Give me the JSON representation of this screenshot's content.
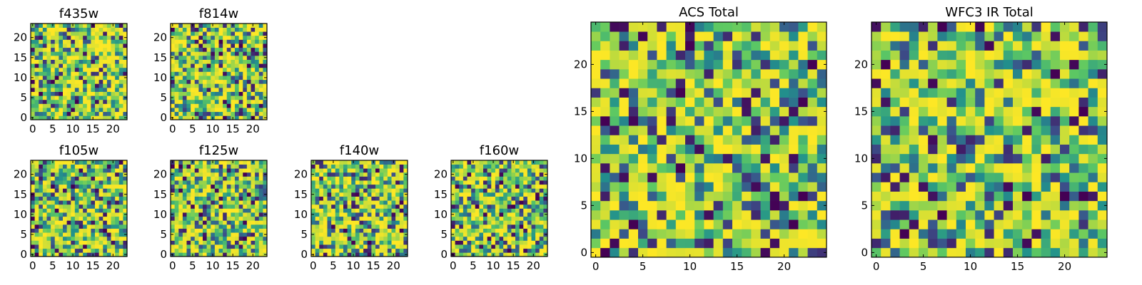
{
  "figure_title": "",
  "chart_data": [
    {
      "id": "f435w",
      "type": "heatmap",
      "title": "f435w",
      "grid": [
        24,
        24
      ],
      "xlim": [
        -0.5,
        23.5
      ],
      "ylim": [
        -0.5,
        23.5
      ],
      "xticks": [
        0,
        5,
        10,
        15,
        20
      ],
      "yticks": [
        0,
        5,
        10,
        15,
        20
      ],
      "colormap": "viridis",
      "seed": 11
    },
    {
      "id": "f814w",
      "type": "heatmap",
      "title": "f814w",
      "grid": [
        24,
        24
      ],
      "xlim": [
        -0.5,
        23.5
      ],
      "ylim": [
        -0.5,
        23.5
      ],
      "xticks": [
        0,
        5,
        10,
        15,
        20
      ],
      "yticks": [
        0,
        5,
        10,
        15,
        20
      ],
      "colormap": "viridis",
      "seed": 23
    },
    {
      "id": "f105w",
      "type": "heatmap",
      "title": "f105w",
      "grid": [
        24,
        24
      ],
      "xlim": [
        -0.5,
        23.5
      ],
      "ylim": [
        -0.5,
        23.5
      ],
      "xticks": [
        0,
        5,
        10,
        15,
        20
      ],
      "yticks": [
        0,
        5,
        10,
        15,
        20
      ],
      "colormap": "viridis",
      "seed": 37
    },
    {
      "id": "f125w",
      "type": "heatmap",
      "title": "f125w",
      "grid": [
        24,
        24
      ],
      "xlim": [
        -0.5,
        23.5
      ],
      "ylim": [
        -0.5,
        23.5
      ],
      "xticks": [
        0,
        5,
        10,
        15,
        20
      ],
      "yticks": [
        0,
        5,
        10,
        15,
        20
      ],
      "colormap": "viridis",
      "seed": 41
    },
    {
      "id": "f140w",
      "type": "heatmap",
      "title": "f140w",
      "grid": [
        24,
        24
      ],
      "xlim": [
        -0.5,
        23.5
      ],
      "ylim": [
        -0.5,
        23.5
      ],
      "xticks": [
        0,
        5,
        10,
        15,
        20
      ],
      "yticks": [
        0,
        5,
        10,
        15,
        20
      ],
      "colormap": "viridis",
      "seed": 53
    },
    {
      "id": "f160w",
      "type": "heatmap",
      "title": "f160w",
      "grid": [
        24,
        24
      ],
      "xlim": [
        -0.5,
        23.5
      ],
      "ylim": [
        -0.5,
        23.5
      ],
      "xticks": [
        0,
        5,
        10,
        15,
        20
      ],
      "yticks": [
        0,
        5,
        10,
        15,
        20
      ],
      "colormap": "viridis",
      "seed": 67
    },
    {
      "id": "acs_total",
      "type": "heatmap",
      "title": "ACS Total",
      "grid": [
        25,
        25
      ],
      "xlim": [
        -0.5,
        24.5
      ],
      "ylim": [
        -0.5,
        24.5
      ],
      "xticks": [
        0,
        5,
        10,
        15,
        20
      ],
      "yticks": [
        0,
        5,
        10,
        15,
        20
      ],
      "colormap": "viridis",
      "seed": 79
    },
    {
      "id": "wfc3_ir_total",
      "type": "heatmap",
      "title": "WFC3 IR Total",
      "grid": [
        25,
        25
      ],
      "xlim": [
        -0.5,
        24.5
      ],
      "ylim": [
        -0.5,
        24.5
      ],
      "xticks": [
        0,
        5,
        10,
        15,
        20
      ],
      "yticks": [
        0,
        5,
        10,
        15,
        20
      ],
      "colormap": "viridis",
      "seed": 97
    }
  ],
  "colormap_stops": [
    "#440154",
    "#3b528b",
    "#21918c",
    "#5ec962",
    "#fde725"
  ]
}
